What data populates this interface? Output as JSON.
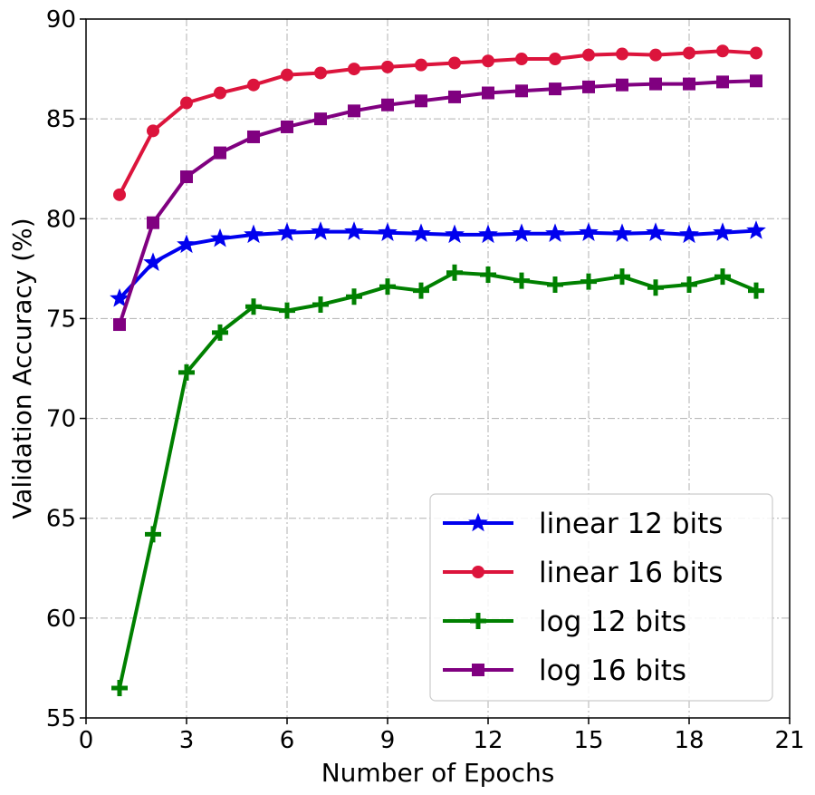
{
  "chart_data": {
    "type": "line",
    "title": "",
    "xlabel": "Number of Epochs",
    "ylabel": "Validation Accuracy (%)",
    "xlim": [
      0,
      21
    ],
    "ylim": [
      55,
      90
    ],
    "xticks": [
      0,
      3,
      6,
      9,
      12,
      15,
      18,
      21
    ],
    "yticks": [
      55,
      60,
      65,
      70,
      75,
      80,
      85,
      90
    ],
    "grid": true,
    "legend_position": "lower-right",
    "x": [
      1,
      2,
      3,
      4,
      5,
      6,
      7,
      8,
      9,
      10,
      11,
      12,
      13,
      14,
      15,
      16,
      17,
      18,
      19,
      20
    ],
    "series": [
      {
        "name": "linear 12 bits",
        "color": "#0000ee",
        "marker": "star",
        "values": [
          76.0,
          77.8,
          78.7,
          79.0,
          79.2,
          79.3,
          79.35,
          79.35,
          79.3,
          79.25,
          79.2,
          79.2,
          79.25,
          79.25,
          79.3,
          79.25,
          79.3,
          79.2,
          79.3,
          79.4
        ]
      },
      {
        "name": "linear 16 bits",
        "color": "#dc143c",
        "marker": "circle",
        "values": [
          81.2,
          84.4,
          85.8,
          86.3,
          86.7,
          87.2,
          87.3,
          87.5,
          87.6,
          87.7,
          87.8,
          87.9,
          88.0,
          88.0,
          88.2,
          88.25,
          88.2,
          88.3,
          88.4,
          88.3
        ]
      },
      {
        "name": "log 12 bits",
        "color": "#008000",
        "marker": "plus",
        "values": [
          56.5,
          64.2,
          72.3,
          74.3,
          75.6,
          75.4,
          75.7,
          76.1,
          76.6,
          76.4,
          77.3,
          77.2,
          76.9,
          76.7,
          76.85,
          77.1,
          76.55,
          76.7,
          77.1,
          76.4
        ]
      },
      {
        "name": "log 16 bits",
        "color": "#800080",
        "marker": "square",
        "values": [
          74.7,
          79.8,
          82.1,
          83.3,
          84.1,
          84.6,
          85.0,
          85.4,
          85.7,
          85.9,
          86.1,
          86.3,
          86.4,
          86.5,
          86.6,
          86.7,
          86.75,
          86.75,
          86.85,
          86.9
        ]
      }
    ]
  }
}
